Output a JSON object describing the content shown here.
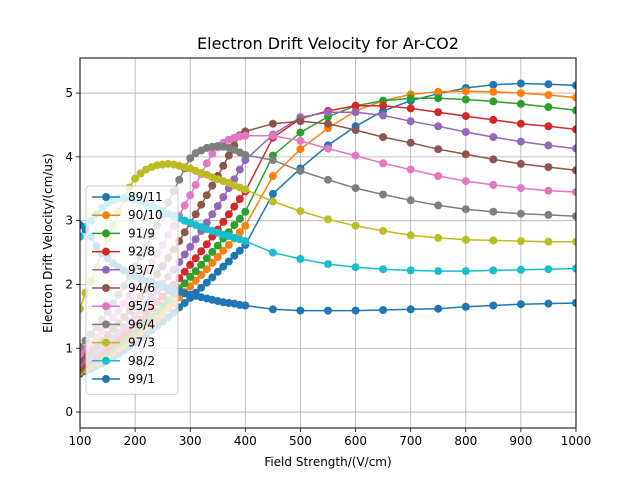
{
  "chart_data": {
    "type": "line",
    "title": "Electron Drift Velocity for Ar-CO2",
    "xlabel": "Field Strength/(V/cm)",
    "ylabel": "Electron Drift Velocity/(cm/us)",
    "xlim": [
      100,
      1000
    ],
    "ylim": [
      -0.25,
      5.55
    ],
    "xticks": [
      "100",
      "200",
      "300",
      "400",
      "500",
      "600",
      "700",
      "800",
      "900",
      "1000"
    ],
    "yticks": [
      "0",
      "1",
      "2",
      "3",
      "4",
      "5"
    ],
    "grid": true,
    "legend_position": "left",
    "x": [
      100,
      110,
      120,
      130,
      140,
      150,
      160,
      170,
      180,
      190,
      200,
      210,
      220,
      230,
      240,
      250,
      260,
      270,
      280,
      290,
      300,
      310,
      320,
      330,
      340,
      350,
      360,
      370,
      380,
      390,
      400,
      450,
      500,
      550,
      600,
      650,
      700,
      750,
      800,
      850,
      900,
      950,
      1000
    ],
    "series": [
      {
        "name": "89/11",
        "color": "#1f77b4",
        "values": [
          0.6,
          0.64,
          0.68,
          0.72,
          0.76,
          0.81,
          0.86,
          0.91,
          0.97,
          1.03,
          1.09,
          1.15,
          1.21,
          1.28,
          1.35,
          1.42,
          1.49,
          1.56,
          1.64,
          1.71,
          1.79,
          1.87,
          1.95,
          2.03,
          2.11,
          2.2,
          2.28,
          2.36,
          2.45,
          2.53,
          2.62,
          3.42,
          3.82,
          4.18,
          4.48,
          4.72,
          4.88,
          4.99,
          5.08,
          5.13,
          5.15,
          5.14,
          5.12
        ]
      },
      {
        "name": "90/10",
        "color": "#ff7f0e",
        "values": [
          0.63,
          0.67,
          0.72,
          0.77,
          0.82,
          0.87,
          0.93,
          0.99,
          1.05,
          1.11,
          1.18,
          1.25,
          1.32,
          1.4,
          1.47,
          1.55,
          1.63,
          1.71,
          1.8,
          1.88,
          1.97,
          2.06,
          2.15,
          2.24,
          2.34,
          2.43,
          2.53,
          2.62,
          2.72,
          2.82,
          2.92,
          3.7,
          4.12,
          4.45,
          4.72,
          4.88,
          4.98,
          5.02,
          5.03,
          5.02,
          5.0,
          4.97,
          4.93
        ]
      },
      {
        "name": "91/9",
        "color": "#2ca02c",
        "values": [
          0.67,
          0.72,
          0.77,
          0.82,
          0.88,
          0.94,
          1.0,
          1.06,
          1.13,
          1.2,
          1.27,
          1.34,
          1.42,
          1.5,
          1.58,
          1.67,
          1.75,
          1.84,
          1.93,
          2.02,
          2.12,
          2.21,
          2.31,
          2.41,
          2.51,
          2.61,
          2.72,
          2.82,
          2.93,
          3.03,
          3.14,
          4.02,
          4.38,
          4.63,
          4.8,
          4.88,
          4.92,
          4.92,
          4.9,
          4.87,
          4.83,
          4.78,
          4.73
        ]
      },
      {
        "name": "92/8",
        "color": "#d62728",
        "values": [
          0.71,
          0.76,
          0.82,
          0.88,
          0.94,
          1.0,
          1.07,
          1.14,
          1.22,
          1.29,
          1.37,
          1.45,
          1.54,
          1.63,
          1.72,
          1.81,
          1.9,
          2.0,
          2.1,
          2.2,
          2.31,
          2.41,
          2.52,
          2.63,
          2.75,
          2.86,
          2.98,
          3.1,
          3.22,
          3.34,
          3.46,
          4.3,
          4.6,
          4.72,
          4.8,
          4.8,
          4.76,
          4.7,
          4.64,
          4.58,
          4.52,
          4.48,
          4.43
        ]
      },
      {
        "name": "93/7",
        "color": "#9467bd",
        "values": [
          0.76,
          0.82,
          0.88,
          0.95,
          1.02,
          1.09,
          1.17,
          1.25,
          1.33,
          1.42,
          1.51,
          1.6,
          1.7,
          1.8,
          1.9,
          2.01,
          2.12,
          2.23,
          2.35,
          2.47,
          2.59,
          2.71,
          2.84,
          2.97,
          3.1,
          3.23,
          3.37,
          3.51,
          3.65,
          3.8,
          3.95,
          4.35,
          4.62,
          4.7,
          4.7,
          4.65,
          4.56,
          4.48,
          4.39,
          4.31,
          4.24,
          4.18,
          4.13
        ]
      },
      {
        "name": "94/6",
        "color": "#8c564b",
        "values": [
          0.82,
          0.89,
          0.96,
          1.04,
          1.12,
          1.21,
          1.3,
          1.39,
          1.49,
          1.59,
          1.7,
          1.81,
          1.92,
          2.04,
          2.16,
          2.29,
          2.42,
          2.55,
          2.68,
          2.82,
          2.96,
          3.1,
          3.25,
          3.4,
          3.55,
          3.7,
          3.86,
          4.02,
          4.18,
          4.34,
          4.4,
          4.52,
          4.56,
          4.52,
          4.42,
          4.31,
          4.22,
          4.12,
          4.04,
          3.96,
          3.89,
          3.84,
          3.79
        ]
      },
      {
        "name": "95/5",
        "color": "#e377c2",
        "values": [
          0.91,
          0.99,
          1.08,
          1.17,
          1.27,
          1.37,
          1.48,
          1.59,
          1.7,
          1.82,
          1.94,
          2.07,
          2.2,
          2.34,
          2.48,
          2.62,
          2.77,
          2.92,
          3.08,
          3.24,
          3.4,
          3.56,
          3.73,
          3.9,
          4.05,
          4.15,
          4.22,
          4.27,
          4.3,
          4.32,
          4.33,
          4.33,
          4.25,
          4.13,
          4.02,
          3.9,
          3.8,
          3.7,
          3.62,
          3.56,
          3.51,
          3.47,
          3.45
        ]
      },
      {
        "name": "96/4",
        "color": "#7f7f7f",
        "values": [
          1.02,
          1.12,
          1.22,
          1.33,
          1.45,
          1.57,
          1.7,
          1.84,
          1.98,
          2.13,
          2.28,
          2.44,
          2.6,
          2.76,
          2.93,
          3.1,
          3.28,
          3.46,
          3.64,
          3.82,
          3.98,
          4.06,
          4.1,
          4.14,
          4.16,
          4.17,
          4.16,
          4.14,
          4.11,
          4.07,
          4.03,
          3.95,
          3.78,
          3.64,
          3.51,
          3.41,
          3.32,
          3.24,
          3.18,
          3.14,
          3.11,
          3.09,
          3.07
        ]
      },
      {
        "name": "97/3",
        "color": "#bcbd22",
        "values": [
          1.62,
          1.87,
          2.05,
          2.27,
          2.49,
          2.71,
          2.93,
          3.14,
          3.34,
          3.52,
          3.66,
          3.74,
          3.8,
          3.84,
          3.87,
          3.88,
          3.89,
          3.88,
          3.86,
          3.84,
          3.82,
          3.78,
          3.75,
          3.72,
          3.68,
          3.65,
          3.62,
          3.59,
          3.55,
          3.52,
          3.49,
          3.3,
          3.15,
          3.02,
          2.92,
          2.84,
          2.77,
          2.73,
          2.7,
          2.69,
          2.68,
          2.67,
          2.67
        ]
      },
      {
        "name": "98/2",
        "color": "#17becf",
        "values": [
          2.75,
          2.9,
          3.0,
          3.1,
          3.2,
          3.27,
          3.32,
          3.35,
          3.36,
          3.35,
          3.33,
          3.3,
          3.27,
          3.23,
          3.19,
          3.15,
          3.11,
          3.07,
          3.04,
          3.0,
          2.97,
          2.93,
          2.9,
          2.87,
          2.84,
          2.81,
          2.78,
          2.76,
          2.73,
          2.71,
          2.68,
          2.5,
          2.4,
          2.32,
          2.27,
          2.24,
          2.22,
          2.21,
          2.21,
          2.22,
          2.23,
          2.24,
          2.25
        ]
      },
      {
        "name": "99/1",
        "color": "#1f77b4",
        "values": [
          2.93,
          2.86,
          2.75,
          2.6,
          2.49,
          2.41,
          2.33,
          2.27,
          2.22,
          2.18,
          2.13,
          2.09,
          2.06,
          2.02,
          1.99,
          1.96,
          1.93,
          1.91,
          1.89,
          1.86,
          1.84,
          1.82,
          1.8,
          1.78,
          1.76,
          1.74,
          1.72,
          1.71,
          1.7,
          1.68,
          1.67,
          1.61,
          1.59,
          1.59,
          1.59,
          1.6,
          1.61,
          1.62,
          1.65,
          1.67,
          1.69,
          1.7,
          1.71
        ]
      }
    ]
  }
}
